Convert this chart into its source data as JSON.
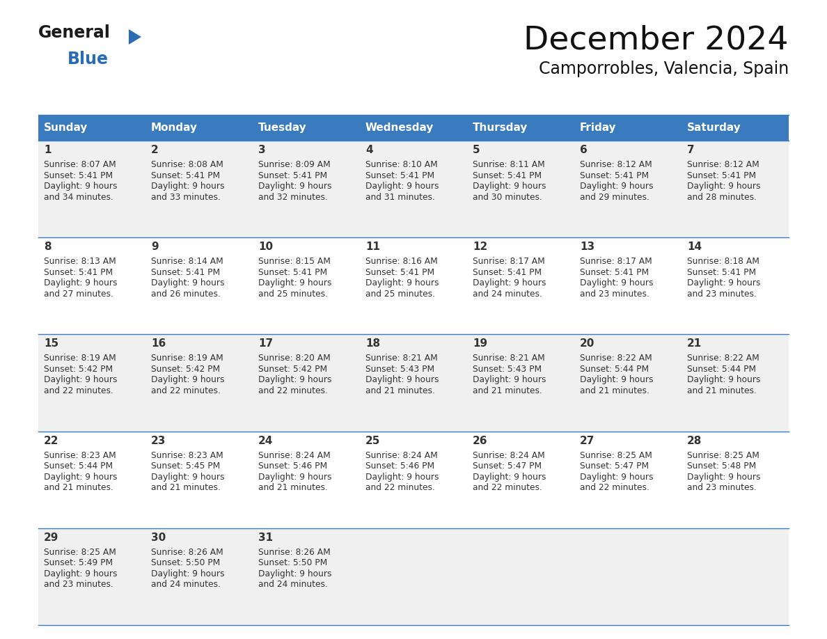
{
  "title": "December 2024",
  "subtitle": "Camporrobles, Valencia, Spain",
  "header_bg": "#3a7bbf",
  "header_text": "#ffffff",
  "days_of_week": [
    "Sunday",
    "Monday",
    "Tuesday",
    "Wednesday",
    "Thursday",
    "Friday",
    "Saturday"
  ],
  "row_bg_odd": "#f0f0f0",
  "row_bg_even": "#ffffff",
  "cell_text_color": "#333333",
  "day_num_color": "#333333",
  "grid_line_color": "#3a7bbf",
  "calendar": [
    [
      {
        "day": 1,
        "sunrise": "8:07 AM",
        "sunset": "5:41 PM",
        "daylight_l1": "Daylight: 9 hours",
        "daylight_l2": "and 34 minutes."
      },
      {
        "day": 2,
        "sunrise": "8:08 AM",
        "sunset": "5:41 PM",
        "daylight_l1": "Daylight: 9 hours",
        "daylight_l2": "and 33 minutes."
      },
      {
        "day": 3,
        "sunrise": "8:09 AM",
        "sunset": "5:41 PM",
        "daylight_l1": "Daylight: 9 hours",
        "daylight_l2": "and 32 minutes."
      },
      {
        "day": 4,
        "sunrise": "8:10 AM",
        "sunset": "5:41 PM",
        "daylight_l1": "Daylight: 9 hours",
        "daylight_l2": "and 31 minutes."
      },
      {
        "day": 5,
        "sunrise": "8:11 AM",
        "sunset": "5:41 PM",
        "daylight_l1": "Daylight: 9 hours",
        "daylight_l2": "and 30 minutes."
      },
      {
        "day": 6,
        "sunrise": "8:12 AM",
        "sunset": "5:41 PM",
        "daylight_l1": "Daylight: 9 hours",
        "daylight_l2": "and 29 minutes."
      },
      {
        "day": 7,
        "sunrise": "8:12 AM",
        "sunset": "5:41 PM",
        "daylight_l1": "Daylight: 9 hours",
        "daylight_l2": "and 28 minutes."
      }
    ],
    [
      {
        "day": 8,
        "sunrise": "8:13 AM",
        "sunset": "5:41 PM",
        "daylight_l1": "Daylight: 9 hours",
        "daylight_l2": "and 27 minutes."
      },
      {
        "day": 9,
        "sunrise": "8:14 AM",
        "sunset": "5:41 PM",
        "daylight_l1": "Daylight: 9 hours",
        "daylight_l2": "and 26 minutes."
      },
      {
        "day": 10,
        "sunrise": "8:15 AM",
        "sunset": "5:41 PM",
        "daylight_l1": "Daylight: 9 hours",
        "daylight_l2": "and 25 minutes."
      },
      {
        "day": 11,
        "sunrise": "8:16 AM",
        "sunset": "5:41 PM",
        "daylight_l1": "Daylight: 9 hours",
        "daylight_l2": "and 25 minutes."
      },
      {
        "day": 12,
        "sunrise": "8:17 AM",
        "sunset": "5:41 PM",
        "daylight_l1": "Daylight: 9 hours",
        "daylight_l2": "and 24 minutes."
      },
      {
        "day": 13,
        "sunrise": "8:17 AM",
        "sunset": "5:41 PM",
        "daylight_l1": "Daylight: 9 hours",
        "daylight_l2": "and 23 minutes."
      },
      {
        "day": 14,
        "sunrise": "8:18 AM",
        "sunset": "5:41 PM",
        "daylight_l1": "Daylight: 9 hours",
        "daylight_l2": "and 23 minutes."
      }
    ],
    [
      {
        "day": 15,
        "sunrise": "8:19 AM",
        "sunset": "5:42 PM",
        "daylight_l1": "Daylight: 9 hours",
        "daylight_l2": "and 22 minutes."
      },
      {
        "day": 16,
        "sunrise": "8:19 AM",
        "sunset": "5:42 PM",
        "daylight_l1": "Daylight: 9 hours",
        "daylight_l2": "and 22 minutes."
      },
      {
        "day": 17,
        "sunrise": "8:20 AM",
        "sunset": "5:42 PM",
        "daylight_l1": "Daylight: 9 hours",
        "daylight_l2": "and 22 minutes."
      },
      {
        "day": 18,
        "sunrise": "8:21 AM",
        "sunset": "5:43 PM",
        "daylight_l1": "Daylight: 9 hours",
        "daylight_l2": "and 21 minutes."
      },
      {
        "day": 19,
        "sunrise": "8:21 AM",
        "sunset": "5:43 PM",
        "daylight_l1": "Daylight: 9 hours",
        "daylight_l2": "and 21 minutes."
      },
      {
        "day": 20,
        "sunrise": "8:22 AM",
        "sunset": "5:44 PM",
        "daylight_l1": "Daylight: 9 hours",
        "daylight_l2": "and 21 minutes."
      },
      {
        "day": 21,
        "sunrise": "8:22 AM",
        "sunset": "5:44 PM",
        "daylight_l1": "Daylight: 9 hours",
        "daylight_l2": "and 21 minutes."
      }
    ],
    [
      {
        "day": 22,
        "sunrise": "8:23 AM",
        "sunset": "5:44 PM",
        "daylight_l1": "Daylight: 9 hours",
        "daylight_l2": "and 21 minutes."
      },
      {
        "day": 23,
        "sunrise": "8:23 AM",
        "sunset": "5:45 PM",
        "daylight_l1": "Daylight: 9 hours",
        "daylight_l2": "and 21 minutes."
      },
      {
        "day": 24,
        "sunrise": "8:24 AM",
        "sunset": "5:46 PM",
        "daylight_l1": "Daylight: 9 hours",
        "daylight_l2": "and 21 minutes."
      },
      {
        "day": 25,
        "sunrise": "8:24 AM",
        "sunset": "5:46 PM",
        "daylight_l1": "Daylight: 9 hours",
        "daylight_l2": "and 22 minutes."
      },
      {
        "day": 26,
        "sunrise": "8:24 AM",
        "sunset": "5:47 PM",
        "daylight_l1": "Daylight: 9 hours",
        "daylight_l2": "and 22 minutes."
      },
      {
        "day": 27,
        "sunrise": "8:25 AM",
        "sunset": "5:47 PM",
        "daylight_l1": "Daylight: 9 hours",
        "daylight_l2": "and 22 minutes."
      },
      {
        "day": 28,
        "sunrise": "8:25 AM",
        "sunset": "5:48 PM",
        "daylight_l1": "Daylight: 9 hours",
        "daylight_l2": "and 23 minutes."
      }
    ],
    [
      {
        "day": 29,
        "sunrise": "8:25 AM",
        "sunset": "5:49 PM",
        "daylight_l1": "Daylight: 9 hours",
        "daylight_l2": "and 23 minutes."
      },
      {
        "day": 30,
        "sunrise": "8:26 AM",
        "sunset": "5:50 PM",
        "daylight_l1": "Daylight: 9 hours",
        "daylight_l2": "and 24 minutes."
      },
      {
        "day": 31,
        "sunrise": "8:26 AM",
        "sunset": "5:50 PM",
        "daylight_l1": "Daylight: 9 hours",
        "daylight_l2": "and 24 minutes."
      },
      null,
      null,
      null,
      null
    ]
  ],
  "logo_color_general": "#1a1a1a",
  "logo_color_blue": "#2a6db5",
  "logo_triangle_color": "#2a6db5"
}
